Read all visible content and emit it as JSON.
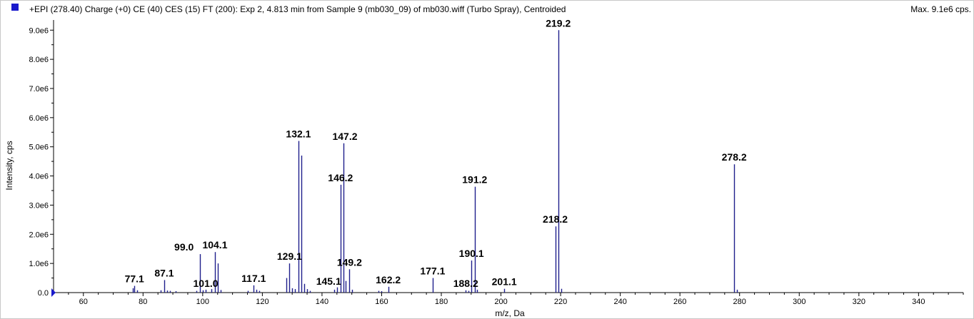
{
  "header": {
    "title": "+EPI (278.40) Charge (+0) CE (40) CES (15) FT (200): Exp 2, 4.813 min from Sample 9 (mb030_09) of mb030.wiff (Turbo Spray), Centroided",
    "max_label": "Max. 9.1e6 cps.",
    "marker_color": "#1a1acc"
  },
  "chart_data": {
    "type": "bar",
    "xlabel": "m/z, Da",
    "ylabel": "Intensity, cps",
    "xlim": [
      50,
      355
    ],
    "ylim": [
      0,
      9300000.0
    ],
    "x_ticks": [
      60,
      80,
      100,
      120,
      140,
      160,
      180,
      200,
      220,
      240,
      260,
      280,
      300,
      320,
      340
    ],
    "y_ticks": [
      {
        "value": 0,
        "label": "0.0"
      },
      {
        "value": 1000000,
        "label": "1.0e6"
      },
      {
        "value": 2000000,
        "label": "2.0e6"
      },
      {
        "value": 3000000,
        "label": "3.0e6"
      },
      {
        "value": 4000000,
        "label": "4.0e6"
      },
      {
        "value": 5000000,
        "label": "5.0e6"
      },
      {
        "value": 6000000,
        "label": "6.0e6"
      },
      {
        "value": 7000000,
        "label": "7.0e6"
      },
      {
        "value": 8000000,
        "label": "8.0e6"
      },
      {
        "value": 9000000,
        "label": "9.0e6"
      }
    ],
    "peak_color": "#1f1f8c",
    "peaks": [
      {
        "x": 76.5,
        "y": 150000
      },
      {
        "x": 77.1,
        "y": 230000,
        "label": "77.1"
      },
      {
        "x": 78.0,
        "y": 80000
      },
      {
        "x": 86.0,
        "y": 80000
      },
      {
        "x": 87.1,
        "y": 430000,
        "label": "87.1"
      },
      {
        "x": 88.0,
        "y": 70000
      },
      {
        "x": 89.0,
        "y": 60000
      },
      {
        "x": 91.0,
        "y": 50000
      },
      {
        "x": 98.0,
        "y": 60000
      },
      {
        "x": 99.0,
        "y": 1320000,
        "label": "99.0"
      },
      {
        "x": 100.0,
        "y": 80000
      },
      {
        "x": 101.0,
        "y": 100000,
        "label": "101.0"
      },
      {
        "x": 103.0,
        "y": 120000
      },
      {
        "x": 104.1,
        "y": 1390000,
        "label": "104.1"
      },
      {
        "x": 105.0,
        "y": 1000000
      },
      {
        "x": 106.0,
        "y": 90000
      },
      {
        "x": 115.0,
        "y": 60000
      },
      {
        "x": 117.1,
        "y": 250000,
        "label": "117.1"
      },
      {
        "x": 118.0,
        "y": 100000
      },
      {
        "x": 119.0,
        "y": 60000
      },
      {
        "x": 128.0,
        "y": 500000
      },
      {
        "x": 129.1,
        "y": 1000000,
        "label": "129.1"
      },
      {
        "x": 130.0,
        "y": 150000
      },
      {
        "x": 131.0,
        "y": 120000
      },
      {
        "x": 132.1,
        "y": 5200000,
        "label": "132.1"
      },
      {
        "x": 133.1,
        "y": 4700000
      },
      {
        "x": 134.0,
        "y": 300000
      },
      {
        "x": 135.0,
        "y": 120000
      },
      {
        "x": 136.0,
        "y": 60000
      },
      {
        "x": 144.0,
        "y": 100000
      },
      {
        "x": 145.1,
        "y": 180000,
        "label": "145.1"
      },
      {
        "x": 146.2,
        "y": 3700000,
        "label": "146.2"
      },
      {
        "x": 147.2,
        "y": 5120000,
        "label": "147.2"
      },
      {
        "x": 148.0,
        "y": 400000
      },
      {
        "x": 149.2,
        "y": 800000,
        "label": "149.2"
      },
      {
        "x": 150.0,
        "y": 100000
      },
      {
        "x": 159.0,
        "y": 60000
      },
      {
        "x": 160.0,
        "y": 50000
      },
      {
        "x": 162.2,
        "y": 200000,
        "label": "162.2"
      },
      {
        "x": 177.1,
        "y": 500000,
        "label": "177.1"
      },
      {
        "x": 188.2,
        "y": 80000,
        "label": "188.2"
      },
      {
        "x": 189.0,
        "y": 60000
      },
      {
        "x": 190.1,
        "y": 1100000,
        "label": "190.1"
      },
      {
        "x": 191.2,
        "y": 3630000,
        "label": "191.2"
      },
      {
        "x": 192.0,
        "y": 100000
      },
      {
        "x": 201.1,
        "y": 130000,
        "label": "201.1"
      },
      {
        "x": 218.2,
        "y": 2270000,
        "label": "218.2"
      },
      {
        "x": 219.2,
        "y": 9000000,
        "label": "219.2"
      },
      {
        "x": 220.2,
        "y": 130000
      },
      {
        "x": 278.2,
        "y": 4400000,
        "label": "278.2"
      },
      {
        "x": 279.0,
        "y": 100000
      }
    ]
  }
}
